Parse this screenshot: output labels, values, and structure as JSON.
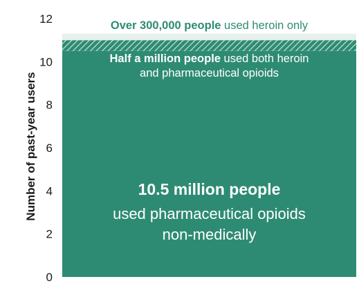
{
  "chart_data": {
    "type": "bar",
    "stacked": true,
    "title": "",
    "xlabel": "",
    "ylabel": "Number of past-year users",
    "ylim": [
      0,
      12
    ],
    "y_ticks": [
      "0",
      "2",
      "4",
      "6",
      "8",
      "10",
      "12"
    ],
    "grid": false,
    "legend": "none",
    "series": [
      {
        "value": 10.5,
        "color": "#2e8b73",
        "pattern": "solid",
        "label_bold": "10.5 million people",
        "label_lines": [
          "used pharmaceutical opioids",
          "non-medically"
        ]
      },
      {
        "value": 0.5,
        "color": "#2e8b73",
        "pattern": "hatched",
        "label_bold": "Half a million people",
        "label_rest": " used both heroin",
        "label_lines": [
          "and pharmaceutical opioids"
        ]
      },
      {
        "value": 0.3,
        "color": "#e6f0ec",
        "pattern": "solid",
        "label_bold": "Over 300,000 people",
        "label_rest": " used heroin only"
      }
    ]
  }
}
